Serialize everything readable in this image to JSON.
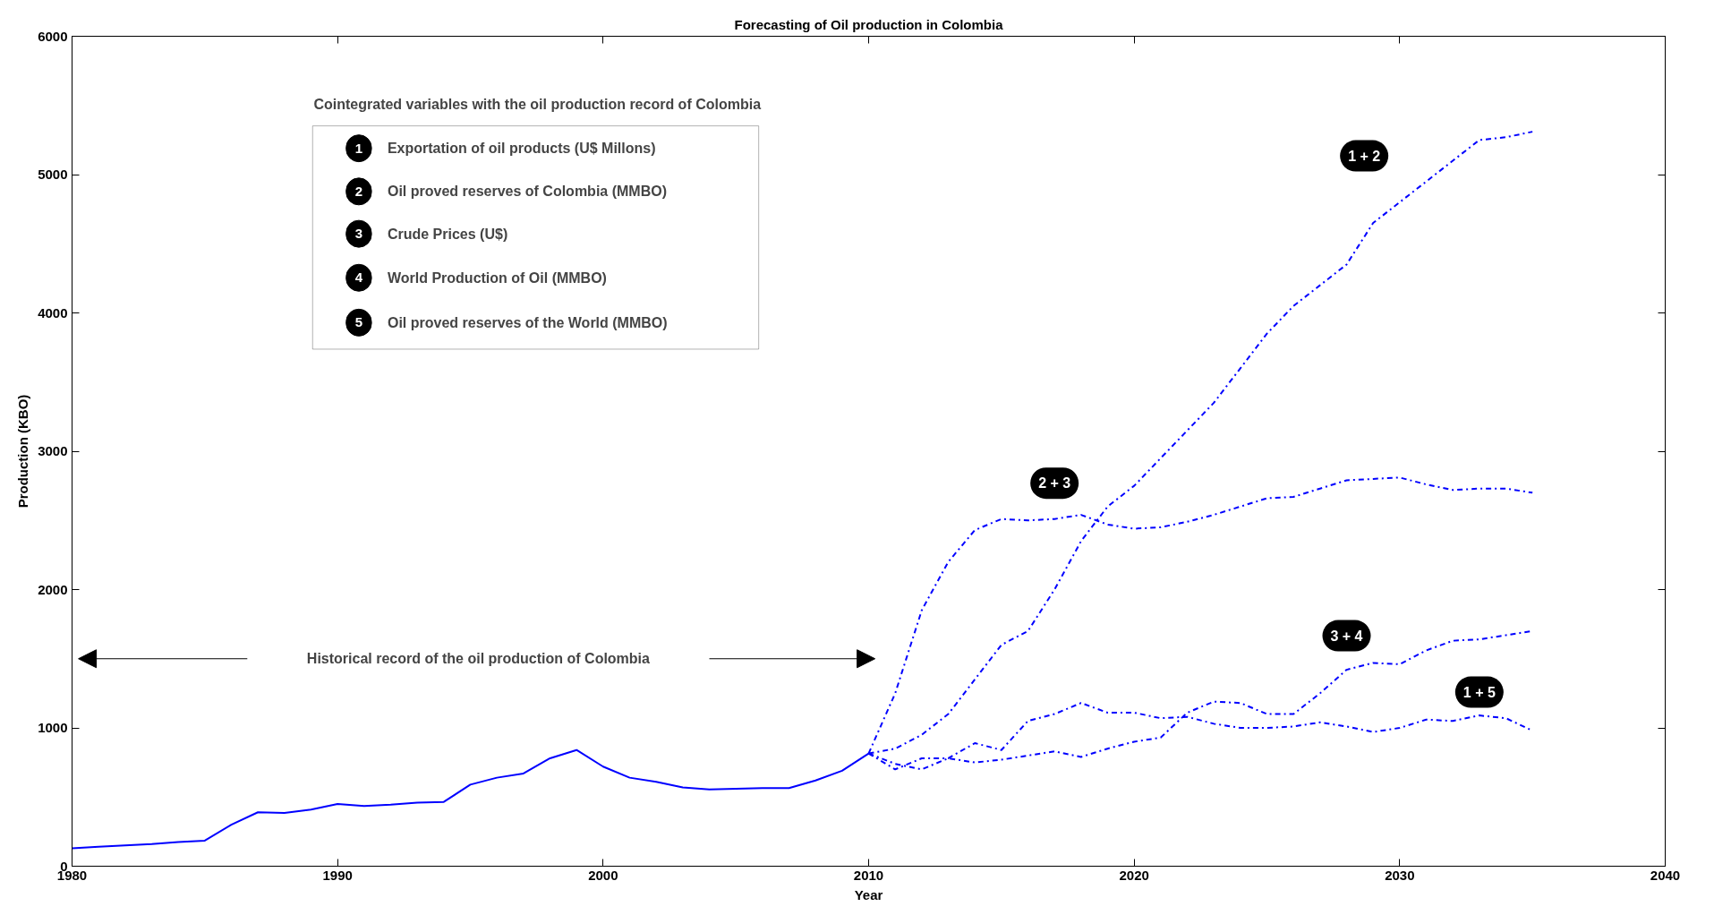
{
  "chart_data": {
    "type": "line",
    "title": "Forecasting of Oil production in Colombia",
    "xlabel": "Year",
    "ylabel": "Production (KBO)",
    "legend_title": "Cointegrated variables with the oil production record of Colombia",
    "xlim": [
      1980,
      2040
    ],
    "xticks": [
      1980,
      1990,
      2000,
      2010,
      2020,
      2030,
      2040
    ],
    "ylim": [
      0,
      6000
    ],
    "yticks": [
      0,
      1000,
      2000,
      3000,
      4000,
      5000,
      6000
    ],
    "grid": false,
    "marker": "none",
    "series": [
      {
        "color": "#0000ff",
        "line_style": "solid",
        "x": [
          1980,
          1981,
          1982,
          1983,
          1984,
          1985,
          1986,
          1987,
          1988,
          1989,
          1990,
          1991,
          1992,
          1993,
          1994,
          1995,
          1996,
          1997,
          1998,
          1999,
          2000,
          2001,
          2002,
          2003,
          2004,
          2005,
          2006,
          2007,
          2008,
          2009,
          2010
        ],
        "values": [
          130,
          140,
          150,
          160,
          175,
          185,
          300,
          390,
          385,
          410,
          450,
          435,
          445,
          460,
          465,
          590,
          640,
          670,
          780,
          840,
          720,
          640,
          610,
          570,
          555,
          560,
          565,
          565,
          620,
          690,
          815
        ]
      },
      {
        "name": "1 + 2",
        "color": "#0000ff",
        "line_style": "dashdot",
        "x": [
          2010,
          2011,
          2012,
          2013,
          2014,
          2015,
          2016,
          2017,
          2018,
          2019,
          2020,
          2021,
          2022,
          2023,
          2024,
          2025,
          2026,
          2027,
          2028,
          2029,
          2030,
          2031,
          2032,
          2033,
          2034,
          2035
        ],
        "values": [
          815,
          850,
          950,
          1100,
          1350,
          1600,
          1700,
          2000,
          2350,
          2600,
          2750,
          2950,
          3150,
          3350,
          3600,
          3850,
          4050,
          4200,
          4350,
          4650,
          4800,
          4950,
          5100,
          5250,
          5270,
          5310
        ]
      },
      {
        "name": "2 + 3",
        "color": "#0000ff",
        "line_style": "dashdot",
        "x": [
          2010,
          2011,
          2012,
          2013,
          2014,
          2015,
          2016,
          2017,
          2018,
          2019,
          2020,
          2021,
          2022,
          2023,
          2024,
          2025,
          2026,
          2027,
          2028,
          2029,
          2030,
          2031,
          2032,
          2033,
          2034,
          2035
        ],
        "values": [
          815,
          1250,
          1850,
          2200,
          2430,
          2510,
          2500,
          2510,
          2540,
          2470,
          2440,
          2450,
          2490,
          2540,
          2600,
          2660,
          2670,
          2730,
          2790,
          2800,
          2810,
          2760,
          2720,
          2730,
          2730,
          2700
        ]
      },
      {
        "name": "3 + 4",
        "color": "#0000ff",
        "line_style": "dashdot",
        "x": [
          2010,
          2011,
          2012,
          2013,
          2014,
          2015,
          2016,
          2017,
          2018,
          2019,
          2020,
          2021,
          2022,
          2023,
          2024,
          2025,
          2026,
          2027,
          2028,
          2029,
          2030,
          2031,
          2032,
          2033,
          2034,
          2035
        ],
        "values": [
          815,
          740,
          700,
          780,
          750,
          770,
          800,
          830,
          790,
          850,
          900,
          930,
          1110,
          1190,
          1180,
          1100,
          1100,
          1250,
          1420,
          1470,
          1460,
          1560,
          1630,
          1640,
          1670,
          1700
        ]
      },
      {
        "name": "1 + 5",
        "color": "#0000ff",
        "line_style": "dashdot",
        "x": [
          2010,
          2011,
          2012,
          2013,
          2014,
          2015,
          2016,
          2017,
          2018,
          2019,
          2020,
          2021,
          2022,
          2023,
          2024,
          2025,
          2026,
          2027,
          2028,
          2029,
          2030,
          2031,
          2032,
          2033,
          2034,
          2035
        ],
        "values": [
          815,
          700,
          780,
          780,
          890,
          840,
          1050,
          1100,
          1180,
          1110,
          1110,
          1070,
          1080,
          1030,
          1000,
          1000,
          1010,
          1040,
          1010,
          970,
          1000,
          1060,
          1050,
          1090,
          1070,
          980
        ]
      }
    ],
    "annotations": [
      "1 Exportation of oil products (U$ Millons)",
      "2 Oil proved reserves of Colombia (MMBO)",
      "3 Crude Prices (U$)",
      "4 World Production of Oil (MMBO)",
      "5 Oil proved reserves of the World (MMBO)",
      "Historical record of the oil production of Colombia"
    ]
  }
}
